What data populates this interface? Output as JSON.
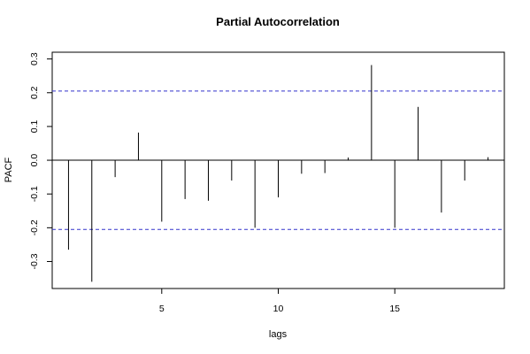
{
  "chart_data": {
    "type": "bar",
    "title": "Partial Autocorrelation",
    "xlabel": "lags",
    "ylabel": "PACF",
    "xlim": [
      0.3,
      19.7
    ],
    "ylim": [
      -0.38,
      0.32
    ],
    "x_ticks": [
      5,
      10,
      15
    ],
    "y_ticks": [
      -0.3,
      -0.2,
      -0.1,
      0.0,
      0.1,
      0.2,
      0.3
    ],
    "y_tick_labels": [
      "-0.3",
      "-0.2",
      "-0.1",
      "0.0",
      "0.1",
      "0.2",
      "0.3"
    ],
    "confidence_bounds": [
      0.205,
      -0.205
    ],
    "confidence_color": "#3333cc",
    "lags": [
      1,
      2,
      3,
      4,
      5,
      6,
      7,
      8,
      9,
      10,
      11,
      12,
      13,
      14,
      15,
      16,
      17,
      18,
      19
    ],
    "values": [
      -0.265,
      -0.36,
      -0.05,
      0.082,
      -0.182,
      -0.115,
      -0.12,
      -0.06,
      -0.2,
      -0.11,
      -0.04,
      -0.038,
      0.008,
      0.282,
      -0.2,
      0.158,
      -0.155,
      -0.06,
      0.009
    ],
    "grid": false,
    "legend": "none"
  }
}
